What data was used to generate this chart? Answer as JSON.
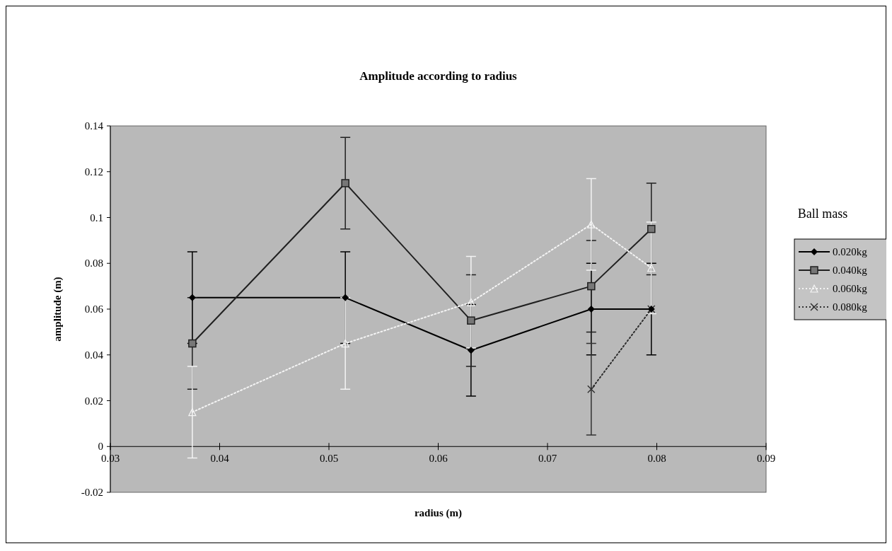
{
  "chart_data": {
    "type": "line",
    "title": "Amplitude according to radius",
    "xlabel": "radius (m)",
    "ylabel": "amplitude (m)",
    "legend_title": "Ball mass",
    "legend": "right",
    "grid": false,
    "xlim": [
      0.03,
      0.09
    ],
    "xticks": [
      0.03,
      0.04,
      0.05,
      0.06,
      0.07,
      0.08,
      0.09
    ],
    "ylim": [
      -0.02,
      0.14
    ],
    "yticks": [
      -0.02,
      0,
      0.02,
      0.04,
      0.06,
      0.08,
      0.1,
      0.12,
      0.14
    ],
    "series": [
      {
        "name": "0.020kg",
        "color": "#000000",
        "marker": "diamond",
        "line_style": "solid",
        "x": [
          0.0375,
          0.0515,
          0.063,
          0.074,
          0.0795
        ],
        "values": [
          0.065,
          0.065,
          0.042,
          0.06,
          0.06
        ],
        "errors": [
          0.02,
          0.02,
          0.02,
          0.02,
          0.02
        ]
      },
      {
        "name": "0.040kg",
        "color": "#202020",
        "marker": "square",
        "line_style": "solid",
        "x": [
          0.0375,
          0.0515,
          0.063,
          0.074,
          0.0795
        ],
        "values": [
          0.045,
          0.115,
          0.055,
          0.07,
          0.095
        ],
        "errors": [
          0.02,
          0.02,
          0.02,
          0.02,
          0.02
        ]
      },
      {
        "name": "0.060kg",
        "color": "#f4f4f4",
        "marker": "triangle",
        "line_style": "dotted",
        "x": [
          0.0375,
          0.0515,
          0.063,
          0.074,
          0.0795
        ],
        "values": [
          0.015,
          0.045,
          0.063,
          0.097,
          0.078
        ],
        "errors": [
          0.02,
          0.02,
          0.02,
          0.02,
          0.02
        ]
      },
      {
        "name": "0.080kg",
        "color": "#333333",
        "marker": "cross",
        "line_style": "dotted",
        "x": [
          0.074,
          0.0795
        ],
        "values": [
          0.025,
          0.06
        ],
        "errors": [
          0.02,
          null
        ]
      }
    ]
  }
}
